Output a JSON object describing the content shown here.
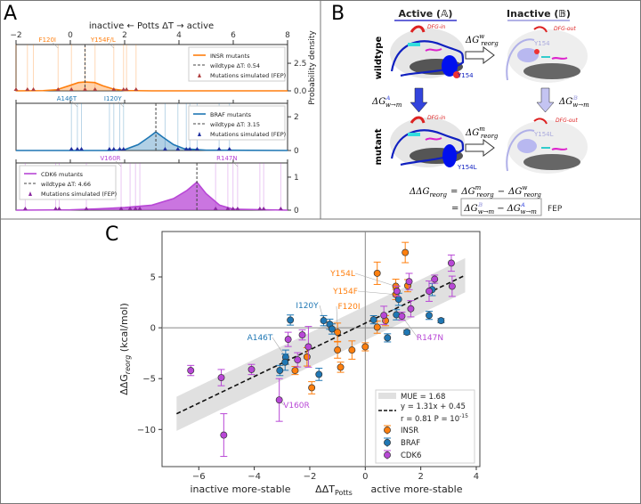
{
  "panels": {
    "a": "A",
    "b": "B",
    "c": "C"
  },
  "panel_a": {
    "top_axis_title": "inactive  ←  Potts ΔT  →  active",
    "right_axis_label": "Probability density",
    "x_ticks": [
      "−2",
      "0",
      "2",
      "4",
      "6",
      "8"
    ],
    "x_tick_values": [
      -2,
      0,
      2,
      4,
      6,
      8
    ],
    "colors": {
      "INSR": "#ff7f0e",
      "BRAF": "#1f77b4",
      "CDK6": "#b847d6"
    },
    "subplots": [
      {
        "id": "INSR",
        "legend": [
          "INSR mutants",
          "wildtype ΔT:  0.54",
          "Mutations simulated (FEP)"
        ],
        "wildtype_dT": 0.54,
        "y_ticks": [
          "2.5",
          "0.0"
        ],
        "y_tick_values": [
          2.5,
          0
        ],
        "ymax": 4.2,
        "density": [
          [
            -2,
            0
          ],
          [
            -1,
            0.02
          ],
          [
            -0.5,
            0.1
          ],
          [
            0,
            0.5
          ],
          [
            0.3,
            0.75
          ],
          [
            0.54,
            0.8
          ],
          [
            0.9,
            0.75
          ],
          [
            1.2,
            0.45
          ],
          [
            1.6,
            0.15
          ],
          [
            2,
            0.03
          ],
          [
            3,
            0
          ],
          [
            8,
            0
          ]
        ],
        "fep_mutations": [
          -2.0,
          -1.58,
          -1.36,
          -0.45,
          0.04,
          0.54,
          0.91,
          1.6,
          1.96,
          2.07,
          2.42
        ],
        "labels": [
          {
            "text": "F120I",
            "x": -0.45
          },
          {
            "text": "Y154F/L",
            "x": 1.6
          }
        ]
      },
      {
        "id": "BRAF",
        "legend": [
          "BRAF mutants",
          "wildtype ΔT:  3.15",
          "Mutations simulated (FEP)"
        ],
        "wildtype_dT": 3.15,
        "y_ticks": [
          "2",
          "0"
        ],
        "y_tick_values": [
          2,
          0
        ],
        "ymax": 2.8,
        "density": [
          [
            -2,
            0
          ],
          [
            1.5,
            0
          ],
          [
            2,
            0.05
          ],
          [
            2.5,
            0.35
          ],
          [
            2.9,
            0.8
          ],
          [
            3.15,
            1.1
          ],
          [
            3.4,
            0.8
          ],
          [
            3.8,
            0.35
          ],
          [
            4.2,
            0.1
          ],
          [
            5,
            0.02
          ],
          [
            8,
            0
          ]
        ],
        "fep_mutations": [
          0.04,
          0.26,
          0.41,
          1.44,
          1.6,
          1.82,
          1.96,
          3.49,
          3.96,
          4.27,
          4.4,
          4.67,
          5.48,
          5.86
        ],
        "labels": [
          {
            "text": "A146T",
            "x": 0.26
          },
          {
            "text": "I120Y",
            "x": 1.96
          }
        ]
      },
      {
        "id": "CDK6",
        "legend": [
          "CDK6 mutants",
          "wildtype ΔT:  4.66",
          "Mutations simulated (FEP)"
        ],
        "wildtype_dT": 4.66,
        "y_ticks": [
          "1",
          "0"
        ],
        "y_tick_values": [
          1,
          0
        ],
        "ymax": 1.43,
        "density": [
          [
            -2,
            0
          ],
          [
            0,
            0.01
          ],
          [
            1,
            0.04
          ],
          [
            2,
            0.08
          ],
          [
            3,
            0.15
          ],
          [
            3.8,
            0.35
          ],
          [
            4.3,
            0.6
          ],
          [
            4.66,
            0.85
          ],
          [
            5,
            0.5
          ],
          [
            5.5,
            0.15
          ],
          [
            6,
            0.03
          ],
          [
            8,
            0
          ]
        ],
        "fep_mutations": [
          -1.66,
          -0.54,
          -0.41,
          0.59,
          1.87,
          2.2,
          2.4,
          2.56,
          5.35,
          5.8,
          5.99,
          6.16,
          6.98,
          7.12,
          7.75
        ],
        "labels": [
          {
            "text": "V160R",
            "x": 1.87
          },
          {
            "text": "R147N",
            "x": 6.16
          }
        ]
      }
    ]
  },
  "panel_b": {
    "active_title": "Active (𝔸)",
    "inactive_title": "Inactive (𝔹)",
    "row_wildtype": "wildtype",
    "row_mutant": "mutant",
    "dfg_in": "DFG-in",
    "dfg_out": "DFG-out",
    "y154": "Y154",
    "y154l": "Y154L",
    "dg_reorg_w": {
      "base": "ΔG",
      "sup": "w",
      "sub": "reorg"
    },
    "dg_reorg_m": {
      "base": "ΔG",
      "sup": "m",
      "sub": "reorg"
    },
    "dg_active": {
      "base": "ΔG",
      "sup": "𝔸",
      "sub": "w→m"
    },
    "dg_inactive": {
      "base": "ΔG",
      "sup": "𝔹",
      "sub": "w→m"
    },
    "eq1": "ΔΔGₐ = ΔGᵐ − ΔGʷ",
    "eq_lhs": "ΔΔG",
    "eq_lhs_sub": "reorg",
    "eq_eq": "=",
    "eq_minus": "−",
    "fep": "FEP"
  },
  "chart_data": {
    "type": "scatter",
    "xlabel": "ΔΔT",
    "xlabel_sub": "Potts",
    "xlabel_left": "inactive more-stable",
    "xlabel_right": "active more-stable",
    "ylabel": "ΔΔG",
    "ylabel_sub": "reorg",
    "ylabel_unit": " (kcal/mol)",
    "xlim": [
      -7.2,
      4.2
    ],
    "ylim": [
      -13.7,
      8.0
    ],
    "x_ticks": [
      -6,
      -4,
      -2,
      0,
      2,
      4
    ],
    "x_tick_labels": [
      "−6",
      "−4",
      "−2",
      "0",
      "2",
      "4"
    ],
    "y_ticks": [
      5,
      0,
      -5,
      -10
    ],
    "y_tick_labels": [
      "5",
      "0",
      "−5",
      "−10"
    ],
    "grid": false,
    "legend_position": "bottom-right",
    "fit": {
      "slope": 1.31,
      "intercept": 0.45,
      "x_range": [
        -6.8,
        3.6
      ],
      "mue": 1.68,
      "label_mue": "MUE = 1.68",
      "label_eq": "y = 1.31x + 0.45",
      "label_r": "r = 0.81  P = 10",
      "label_p_exp": "-15"
    },
    "series": [
      {
        "name": "INSR",
        "color": "#ff7f0e",
        "points": [
          {
            "x": 1.44,
            "y": 7.4,
            "err": 1.0
          },
          {
            "x": 0.43,
            "y": 5.36,
            "err": 1.1
          },
          {
            "x": 1.1,
            "y": 4.08,
            "err": 0.7
          },
          {
            "x": 1.53,
            "y": 4.14,
            "err": 0.6
          },
          {
            "x": 1.1,
            "y": 3.27,
            "err": 0.5
          },
          {
            "x": 0.73,
            "y": 0.7,
            "err": 0.5
          },
          {
            "x": 0.43,
            "y": 0.06,
            "err": 0.6
          },
          {
            "x": -1.0,
            "y": -0.44,
            "err": 0.9
          },
          {
            "x": -1.0,
            "y": -2.19,
            "err": 0.8
          },
          {
            "x": -0.48,
            "y": -2.19,
            "err": 0.9
          },
          {
            "x": 0.0,
            "y": -1.87,
            "err": 0.4
          },
          {
            "x": -0.89,
            "y": -3.88,
            "err": 0.5
          },
          {
            "x": -2.1,
            "y": -2.86,
            "err": 0.9
          },
          {
            "x": -2.53,
            "y": -4.2,
            "err": 0.4
          },
          {
            "x": -1.93,
            "y": -5.9,
            "err": 0.6
          }
        ]
      },
      {
        "name": "BRAF",
        "color": "#1f77b4",
        "points": [
          {
            "x": -2.7,
            "y": 0.76,
            "err": 0.5
          },
          {
            "x": -1.5,
            "y": 0.7,
            "err": 0.5
          },
          {
            "x": -1.28,
            "y": 0.35,
            "err": 0.5
          },
          {
            "x": -1.2,
            "y": -0.12,
            "err": 0.5
          },
          {
            "x": -2.87,
            "y": -2.89,
            "err": 0.7
          },
          {
            "x": -2.89,
            "y": -3.38,
            "err": 0.8
          },
          {
            "x": -3.08,
            "y": -4.2,
            "err": 0.5
          },
          {
            "x": -1.67,
            "y": -4.58,
            "err": 0.6
          },
          {
            "x": 0.3,
            "y": 0.79,
            "err": 0.4
          },
          {
            "x": 1.12,
            "y": 1.28,
            "err": 0.5
          },
          {
            "x": 1.2,
            "y": 2.8,
            "err": 0.6
          },
          {
            "x": 2.41,
            "y": 3.76,
            "err": 0.6
          },
          {
            "x": 2.3,
            "y": 1.22,
            "err": 0.4
          },
          {
            "x": 2.73,
            "y": 0.7,
            "err": 0.2
          },
          {
            "x": 1.5,
            "y": -0.44,
            "err": 0.2
          },
          {
            "x": 0.8,
            "y": -0.99,
            "err": 0.4
          }
        ]
      },
      {
        "name": "CDK6",
        "color": "#b847d6",
        "points": [
          {
            "x": 3.1,
            "y": 6.36,
            "err": 0.8
          },
          {
            "x": 3.13,
            "y": 4.08,
            "err": 1.0
          },
          {
            "x": 2.5,
            "y": 4.78,
            "err": 0.4
          },
          {
            "x": 2.3,
            "y": 3.6,
            "err": 1.0
          },
          {
            "x": 1.58,
            "y": 4.55,
            "err": 0.8
          },
          {
            "x": 1.14,
            "y": 3.6,
            "err": 0.5
          },
          {
            "x": 1.64,
            "y": 1.87,
            "err": 0.8
          },
          {
            "x": 0.67,
            "y": 1.22,
            "err": 0.9
          },
          {
            "x": 1.32,
            "y": 1.14,
            "err": 0.4
          },
          {
            "x": -2.78,
            "y": -1.14,
            "err": 0.7
          },
          {
            "x": -2.27,
            "y": -0.7,
            "err": 0.5
          },
          {
            "x": -2.05,
            "y": -1.87,
            "err": 2.0
          },
          {
            "x": -2.44,
            "y": -3.15,
            "err": 0.7
          },
          {
            "x": -3.1,
            "y": -7.1,
            "err": 2.1
          },
          {
            "x": -4.1,
            "y": -4.1,
            "err": 0.5
          },
          {
            "x": -5.19,
            "y": -4.9,
            "err": 0.8
          },
          {
            "x": -6.29,
            "y": -4.2,
            "err": 0.5
          },
          {
            "x": -5.1,
            "y": -10.55,
            "err": 2.1
          }
        ]
      }
    ],
    "annotations": [
      {
        "text": "Y154L",
        "series": "INSR",
        "x": 1.1,
        "y": 4.08
      },
      {
        "text": "Y154F",
        "series": "INSR",
        "x": 1.1,
        "y": 3.27
      },
      {
        "text": "F120I",
        "series": "INSR",
        "x": -1.0,
        "y": -0.44
      },
      {
        "text": "I120Y",
        "series": "BRAF",
        "x": -1.5,
        "y": 0.7
      },
      {
        "text": "A146T",
        "series": "BRAF",
        "x": -2.87,
        "y": -2.89
      },
      {
        "text": "R147N",
        "series": "CDK6",
        "x": 1.32,
        "y": 1.14
      },
      {
        "text": "V160R",
        "series": "CDK6",
        "x": -3.1,
        "y": -7.1
      }
    ]
  }
}
